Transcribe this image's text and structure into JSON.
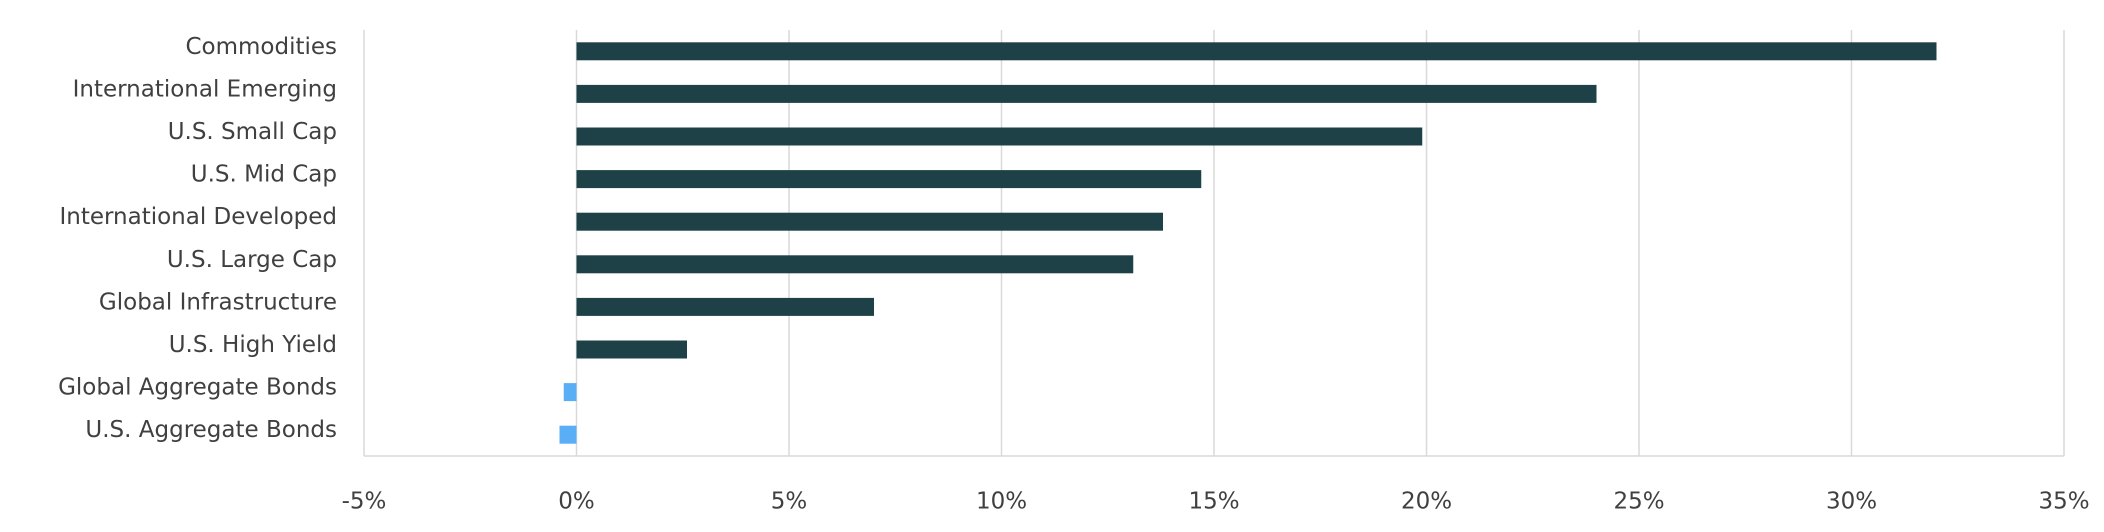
{
  "chart_data": {
    "type": "bar",
    "orientation": "horizontal",
    "categories": [
      "Commodities",
      "International Emerging",
      "U.S. Small Cap",
      "U.S. Mid Cap",
      "International Developed",
      "U.S. Large Cap",
      "Global Infrastructure",
      "U.S. High Yield",
      "Global Aggregate Bonds",
      "U.S. Aggregate Bonds"
    ],
    "values": [
      32.0,
      24.0,
      19.9,
      14.7,
      13.8,
      13.1,
      7.0,
      2.6,
      -0.3,
      -0.4
    ],
    "colors": [
      "#1e4148",
      "#1e4148",
      "#1e4148",
      "#1e4148",
      "#1e4148",
      "#1e4148",
      "#1e4148",
      "#1e4148",
      "#5aaef5",
      "#5aaef5"
    ],
    "xlim": [
      -5,
      35
    ],
    "xticks": [
      {
        "value": -5,
        "label": "-5%"
      },
      {
        "value": 0,
        "label": "0%"
      },
      {
        "value": 5,
        "label": "5%"
      },
      {
        "value": 10,
        "label": "10%"
      },
      {
        "value": 15,
        "label": "15%"
      },
      {
        "value": 20,
        "label": "20%"
      },
      {
        "value": 25,
        "label": "25%"
      },
      {
        "value": 30,
        "label": "30%"
      },
      {
        "value": 35,
        "label": "35%"
      }
    ],
    "grid": true
  }
}
